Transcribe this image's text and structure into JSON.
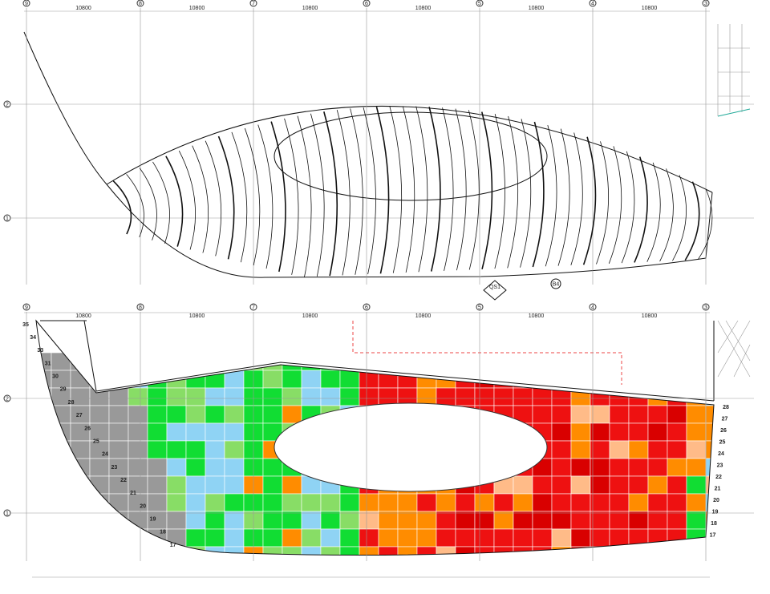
{
  "top_panel": {
    "axes": [
      "9",
      "8",
      "7",
      "6",
      "5",
      "4",
      "3"
    ],
    "dimensions": [
      "10800",
      "10800",
      "10800",
      "10800",
      "10800",
      "10800"
    ],
    "rows": [
      "2",
      "1"
    ],
    "markers": [
      "QS1",
      "B4"
    ]
  },
  "bottom_panel": {
    "axes": [
      "9",
      "8",
      "7",
      "6",
      "5",
      "4",
      "3"
    ],
    "dimensions": [
      "10800",
      "10800",
      "10800",
      "10800",
      "10800",
      "10800"
    ],
    "rows": [
      "2",
      "1"
    ],
    "left_numbers": [
      "35",
      "34",
      "33",
      "31",
      "30",
      "29",
      "28",
      "27",
      "26",
      "25",
      "24",
      "23",
      "22",
      "21",
      "20",
      "19",
      "18",
      "17"
    ],
    "right_numbers": [
      "28",
      "27",
      "26",
      "25",
      "24",
      "23",
      "22",
      "21",
      "20",
      "19",
      "18",
      "17"
    ]
  }
}
